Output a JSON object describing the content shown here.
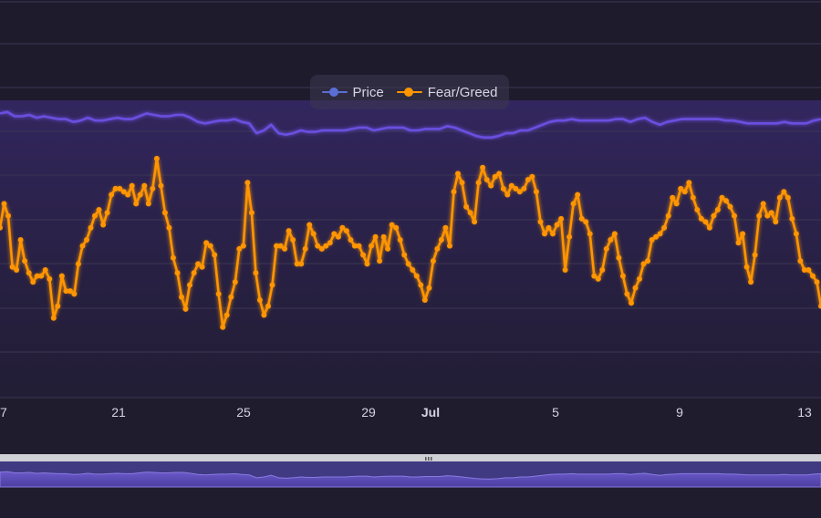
{
  "chart_data": {
    "type": "line",
    "title": "",
    "x_tick_labels": [
      "17",
      "21",
      "25",
      "29",
      "Jul",
      "5",
      "9",
      "13"
    ],
    "legend": {
      "placement": "top-center"
    },
    "grid": true,
    "series": [
      {
        "name": "Price",
        "color": "#6a4fe0",
        "values": [
          0.08,
          0.07,
          0.1,
          0.1,
          0.09,
          0.11,
          0.1,
          0.11,
          0.12,
          0.12,
          0.14,
          0.13,
          0.11,
          0.13,
          0.13,
          0.12,
          0.11,
          0.12,
          0.12,
          0.1,
          0.08,
          0.09,
          0.1,
          0.1,
          0.09,
          0.09,
          0.11,
          0.14,
          0.15,
          0.14,
          0.13,
          0.13,
          0.12,
          0.14,
          0.15,
          0.22,
          0.2,
          0.16,
          0.22,
          0.23,
          0.22,
          0.2,
          0.21,
          0.21,
          0.2,
          0.2,
          0.2,
          0.2,
          0.19,
          0.18,
          0.18,
          0.2,
          0.19,
          0.18,
          0.18,
          0.18,
          0.2,
          0.2,
          0.19,
          0.19,
          0.19,
          0.17,
          0.18,
          0.2,
          0.22,
          0.24,
          0.25,
          0.25,
          0.24,
          0.22,
          0.22,
          0.2,
          0.2,
          0.18,
          0.16,
          0.14,
          0.13,
          0.13,
          0.12,
          0.13,
          0.13,
          0.13,
          0.13,
          0.13,
          0.12,
          0.12,
          0.14,
          0.12,
          0.11,
          0.14,
          0.16,
          0.14,
          0.13,
          0.12,
          0.12,
          0.12,
          0.12,
          0.12,
          0.12,
          0.13,
          0.13,
          0.14,
          0.15,
          0.15,
          0.15,
          0.15,
          0.15,
          0.14,
          0.15,
          0.15,
          0.15,
          0.13,
          0.12
        ]
      },
      {
        "name": "Fear/Greed",
        "color": "#ff9500",
        "values": [
          44,
          52,
          48,
          31,
          30,
          40,
          33,
          29,
          26,
          28,
          28,
          30,
          27,
          14,
          18,
          28,
          23,
          23,
          22,
          32,
          38,
          40,
          44,
          48,
          50,
          45,
          49,
          55,
          57,
          57,
          56,
          55,
          58,
          52,
          55,
          58,
          52,
          57,
          67,
          58,
          49,
          44,
          34,
          29,
          21,
          17,
          25,
          29,
          32,
          31,
          39,
          38,
          35,
          22,
          11,
          15,
          21,
          26,
          37,
          38,
          59,
          49,
          29,
          20,
          15,
          18,
          25,
          38,
          38,
          37,
          43,
          40,
          32,
          32,
          37,
          45,
          42,
          38,
          37,
          38,
          39,
          42,
          41,
          44,
          43,
          40,
          38,
          38,
          35,
          32,
          38,
          41,
          33,
          41,
          37,
          45,
          44,
          40,
          35,
          32,
          30,
          28,
          25,
          20,
          24,
          33,
          37,
          40,
          44,
          38,
          56,
          62,
          59,
          51,
          49,
          46,
          59,
          64,
          60,
          58,
          61,
          62,
          57,
          55,
          58,
          57,
          56,
          57,
          60,
          61,
          56,
          46,
          42,
          44,
          42,
          45,
          47,
          30,
          41,
          52,
          55,
          47,
          46,
          42,
          28,
          27,
          30,
          37,
          40,
          42,
          34,
          28,
          22,
          19,
          24,
          27,
          32,
          33,
          40,
          41,
          42,
          44,
          48,
          54,
          52,
          57,
          56,
          59,
          54,
          50,
          47,
          46,
          44,
          48,
          50,
          54,
          53,
          51,
          48,
          39,
          42,
          31,
          26,
          35,
          48,
          52,
          48,
          49,
          46,
          54,
          56,
          54,
          47,
          42,
          33,
          30,
          30,
          28,
          26,
          18
        ]
      }
    ],
    "range_selector": {
      "handle_icon": "grip-icon"
    }
  }
}
